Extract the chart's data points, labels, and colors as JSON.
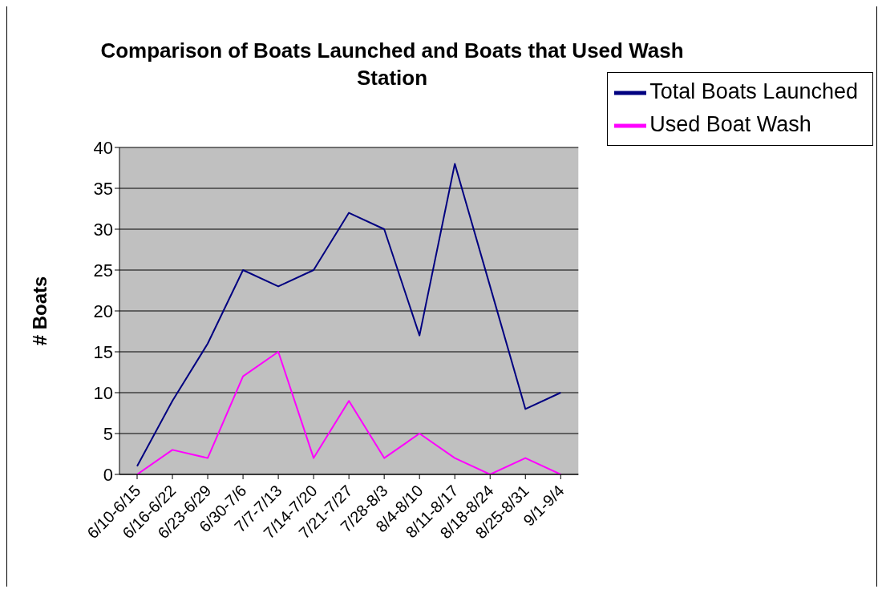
{
  "chart_data": {
    "type": "line",
    "title": "Comparison of Boats Launched and Boats that Used Wash Station",
    "ylabel": "# Boats",
    "categories": [
      "6/10-6/15",
      "6/16-6/22",
      "6/23-6/29",
      "6/30-7/6",
      "7/7-7/13",
      "7/14-7/20",
      "7/21-7/27",
      "7/28-8/3",
      "8/4-8/10",
      "8/11-8/17",
      "8/18-8/24",
      "8/25-8/31",
      "9/1-9/4"
    ],
    "series": [
      {
        "name": "Total Boats Launched",
        "color": "#000080",
        "values": [
          1,
          9,
          16,
          25,
          23,
          25,
          32,
          30,
          17,
          38,
          23,
          8,
          10
        ]
      },
      {
        "name": "Used Boat Wash",
        "color": "#ff00ff",
        "values": [
          0,
          3,
          2,
          12,
          15,
          2,
          9,
          2,
          5,
          2,
          0,
          2,
          0
        ]
      }
    ],
    "ylim": [
      0,
      40
    ],
    "yticks": [
      0,
      5,
      10,
      15,
      20,
      25,
      30,
      35,
      40
    ],
    "grid": "y",
    "legend": "top right",
    "marker": "none",
    "line_style": "solid"
  }
}
